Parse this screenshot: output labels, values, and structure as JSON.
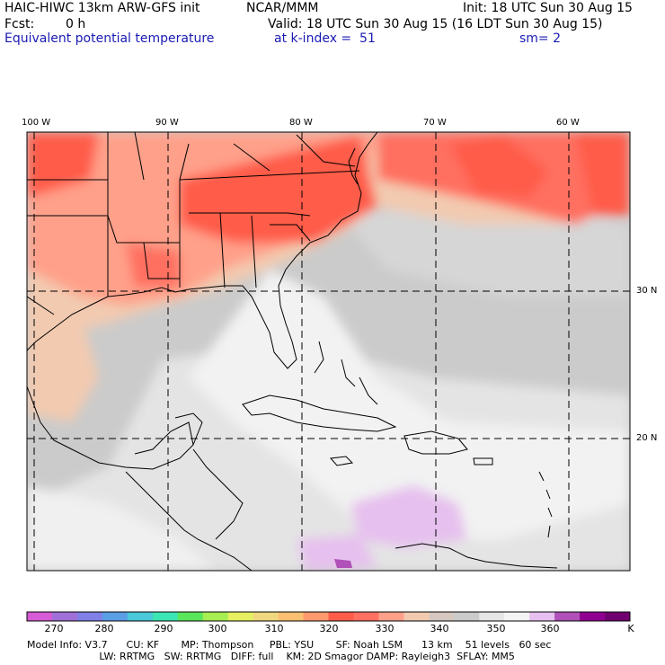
{
  "header": {
    "model": "HAIC-HIWC 13km ARW-GFS init",
    "org": "NCAR/MMM",
    "init": "Init: 18 UTC Sun 30 Aug 15",
    "fcst_label": "Fcst:",
    "fcst_value": "0 h",
    "valid": "Valid: 18 UTC Sun 30 Aug 15 (16 LDT Sun 30 Aug 15)",
    "field": "Equivalent potential temperature",
    "level": "at k-index =  51",
    "smooth": "sm= 2"
  },
  "map": {
    "lon_labels": [
      "100 W",
      "90 W",
      "80 W",
      "70 W",
      "60 W"
    ],
    "lat_labels": [
      "30 N",
      "20 N"
    ]
  },
  "colorbar": {
    "colors": [
      "#d65cd6",
      "#a070d8",
      "#8080e8",
      "#5a9ee6",
      "#48c8d8",
      "#3ce6b4",
      "#5ae65a",
      "#a6ee52",
      "#e6f060",
      "#f0d880",
      "#f8c070",
      "#ff9a6e",
      "#ff5c4a",
      "#ff7060",
      "#ffa08a",
      "#f2cab0",
      "#d6c8c0",
      "#cbcbcb",
      "#e6e6e6",
      "#f4f4f4",
      "#e6c0ee",
      "#b050b8",
      "#900090",
      "#700070"
    ],
    "labels": [
      "270",
      "280",
      "290",
      "300",
      "310",
      "320",
      "330",
      "340",
      "350",
      "360"
    ],
    "unit": "K"
  },
  "model_info": {
    "line1": "Model Info: V3.7      CU: KF       MP: Thompson     PBL: YSU       SF: Noah LSM      13 km    51 levels   60 sec",
    "line2": "                       LW: RRTMG   SW: RRTMG   DIFF: full    KM: 2D Smagor DAMP: Rayleigh3  SFLAY: MM5"
  }
}
